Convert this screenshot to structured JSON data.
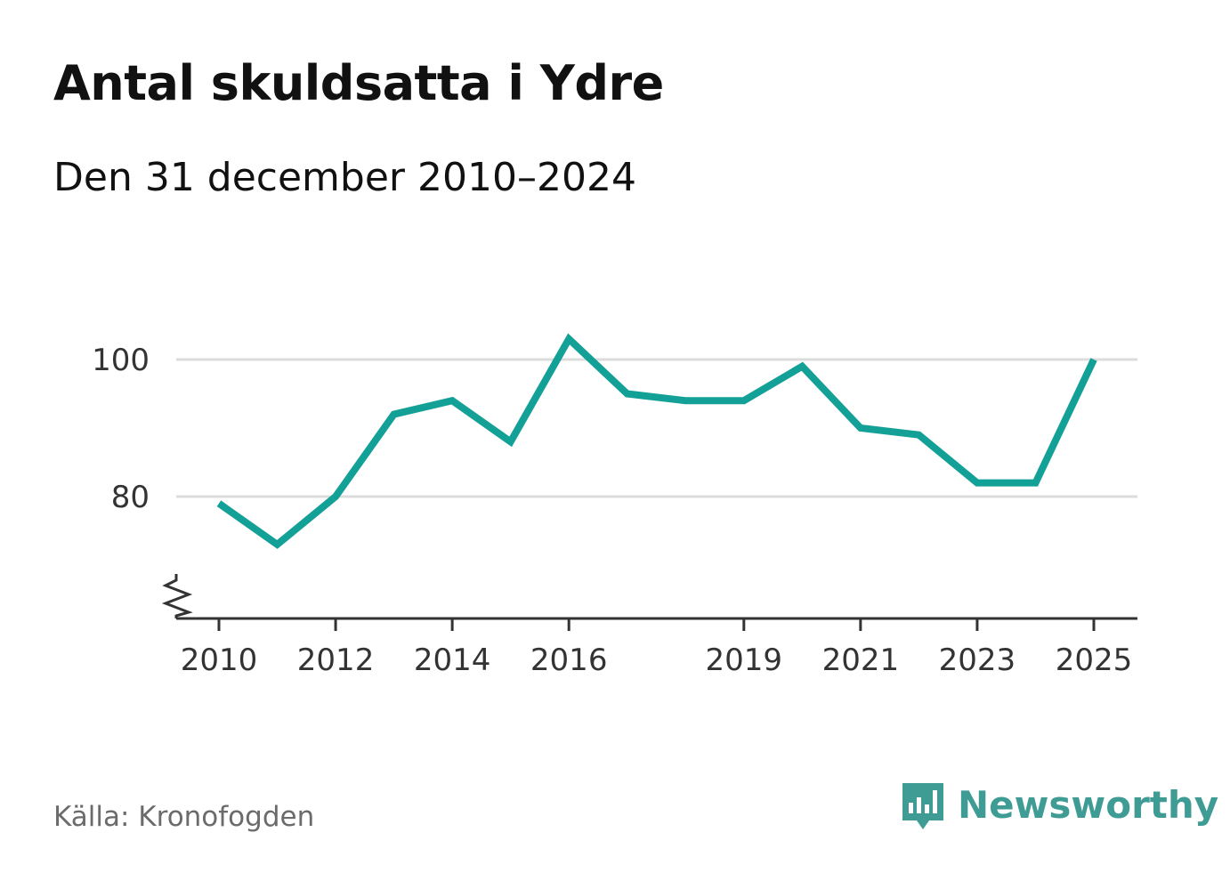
{
  "header": {
    "title": "Antal skuldsatta i Ydre",
    "subtitle": "Den 31 december 2010–2024"
  },
  "footer": {
    "source": "Källa: Kronofogden",
    "brand": "Newsworthy",
    "brand_icon": "newsworthy-logo-icon"
  },
  "colors": {
    "line": "#13a096",
    "grid": "#dcdcdc",
    "axis": "#333333",
    "brand": "#3f9c95"
  },
  "chart_data": {
    "type": "line",
    "title": "Antal skuldsatta i Ydre",
    "subtitle": "Den 31 december 2010–2024",
    "xlabel": "",
    "ylabel": "",
    "x": [
      2010,
      2011,
      2012,
      2013,
      2014,
      2015,
      2016,
      2017,
      2018,
      2019,
      2020,
      2021,
      2022,
      2023,
      2024,
      2025
    ],
    "series": [
      {
        "name": "Antal skuldsatta",
        "values": [
          79,
          73,
          80,
          92,
          94,
          88,
          103,
          95,
          94,
          94,
          99,
          90,
          89,
          82,
          82,
          100
        ]
      }
    ],
    "xticks": [
      2010,
      2012,
      2014,
      2016,
      2019,
      2021,
      2023,
      2025
    ],
    "yticks": [
      80,
      100
    ],
    "xlim": [
      2010,
      2025
    ],
    "ylim": [
      62,
      104
    ],
    "grid": true,
    "axis_break": true,
    "legend": "none"
  }
}
